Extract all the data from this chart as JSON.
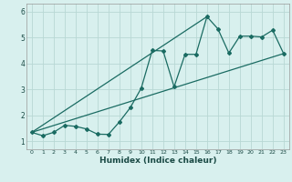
{
  "xlabel": "Humidex (Indice chaleur)",
  "bg_color": "#d8f0ee",
  "grid_color": "#b8d8d4",
  "line_color": "#1a6b62",
  "xlim": [
    -0.5,
    23.5
  ],
  "ylim": [
    0.7,
    6.3
  ],
  "xticks": [
    0,
    1,
    2,
    3,
    4,
    5,
    6,
    7,
    8,
    9,
    10,
    11,
    12,
    13,
    14,
    15,
    16,
    17,
    18,
    19,
    20,
    21,
    22,
    23
  ],
  "yticks": [
    1,
    2,
    3,
    4,
    5,
    6
  ],
  "curve1_x": [
    0,
    1,
    2,
    3,
    4,
    5,
    6,
    7,
    8,
    9,
    10,
    11,
    12,
    13,
    14,
    15,
    16,
    17,
    18,
    19,
    20,
    21,
    22,
    23
  ],
  "curve1_y": [
    1.35,
    1.22,
    1.35,
    1.62,
    1.58,
    1.48,
    1.28,
    1.27,
    1.75,
    2.3,
    3.05,
    4.5,
    4.48,
    3.1,
    4.35,
    4.35,
    5.8,
    5.33,
    4.4,
    5.05,
    5.05,
    5.02,
    5.28,
    4.38
  ],
  "line1_x": [
    0,
    23
  ],
  "line1_y": [
    1.35,
    4.38
  ],
  "line2_x": [
    0,
    16
  ],
  "line2_y": [
    1.35,
    5.8
  ]
}
